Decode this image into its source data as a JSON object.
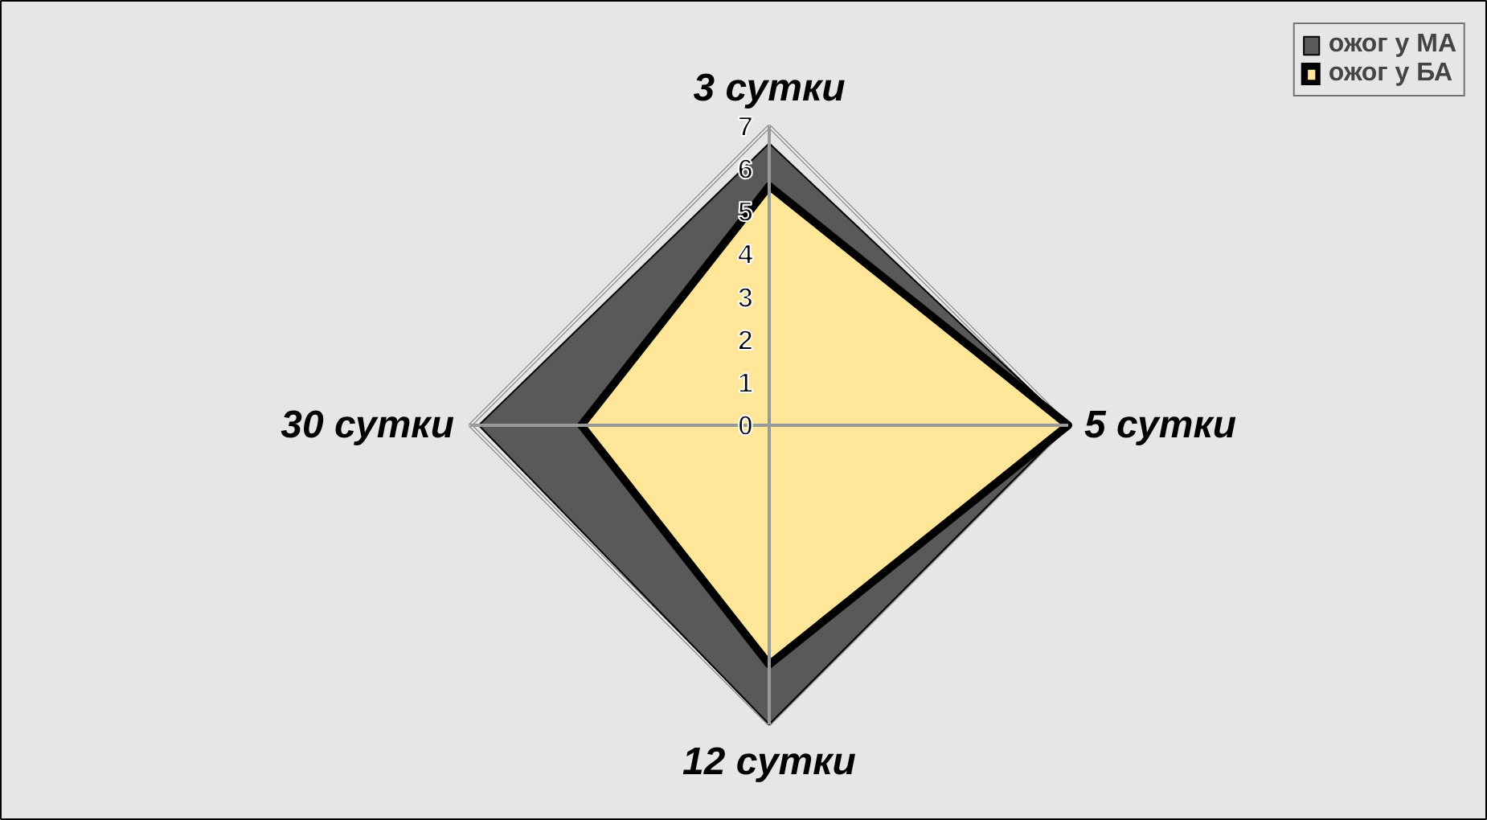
{
  "chart_data": {
    "type": "radar",
    "categories": [
      "3 сутки",
      "5 сутки",
      "12 сутки",
      "30 сутки"
    ],
    "series": [
      {
        "name": "ожог у МА",
        "color": "#595959",
        "values": [
          6.6,
          7,
          7,
          6.8
        ]
      },
      {
        "name": "ожог у БА",
        "color": "#ffe699",
        "values": [
          5.6,
          7,
          5.6,
          4.4
        ]
      }
    ],
    "ylim": [
      0,
      7
    ],
    "yticks": [
      0,
      1,
      2,
      3,
      4,
      5,
      6,
      7
    ],
    "grid": false,
    "legend": "top right"
  }
}
